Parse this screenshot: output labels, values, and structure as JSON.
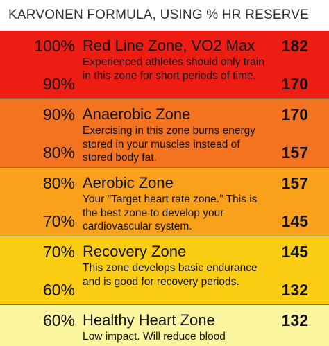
{
  "header": {
    "title": "KARVONEN FORMULA, USING % HR RESERVE"
  },
  "zones": [
    {
      "name": "Red Line Zone, VO2 Max",
      "description": "Experienced athletes should only train in this zone for short periods of time.",
      "pct_top": "100%",
      "pct_bottom": "90%",
      "bpm_top": "182",
      "bpm_bottom": "170",
      "color": "#ee1d13"
    },
    {
      "name": "Anaerobic Zone",
      "description": "Exercising in this zone burns energy stored in your muscles instead of stored body fat.",
      "pct_top": "90%",
      "pct_bottom": "80%",
      "bpm_top": "170",
      "bpm_bottom": "157",
      "color": "#f47321"
    },
    {
      "name": "Aerobic Zone",
      "description": "Your \"Target heart rate zone.\" This is the best zone to develop your cardiovascular system.",
      "pct_top": "80%",
      "pct_bottom": "70%",
      "bpm_top": "157",
      "bpm_bottom": "145",
      "color": "#f9a11a"
    },
    {
      "name": "Recovery Zone",
      "description": "This zone develops basic endurance and is good for recovery periods.",
      "pct_top": "70%",
      "pct_bottom": "60%",
      "bpm_top": "145",
      "bpm_bottom": "132",
      "color": "#fbcd12"
    },
    {
      "name": "Healthy Heart Zone",
      "description": "Low impact. Will reduce blood",
      "pct_top": "60%",
      "bpm_top": "132",
      "color": "#fcf6a0"
    }
  ]
}
